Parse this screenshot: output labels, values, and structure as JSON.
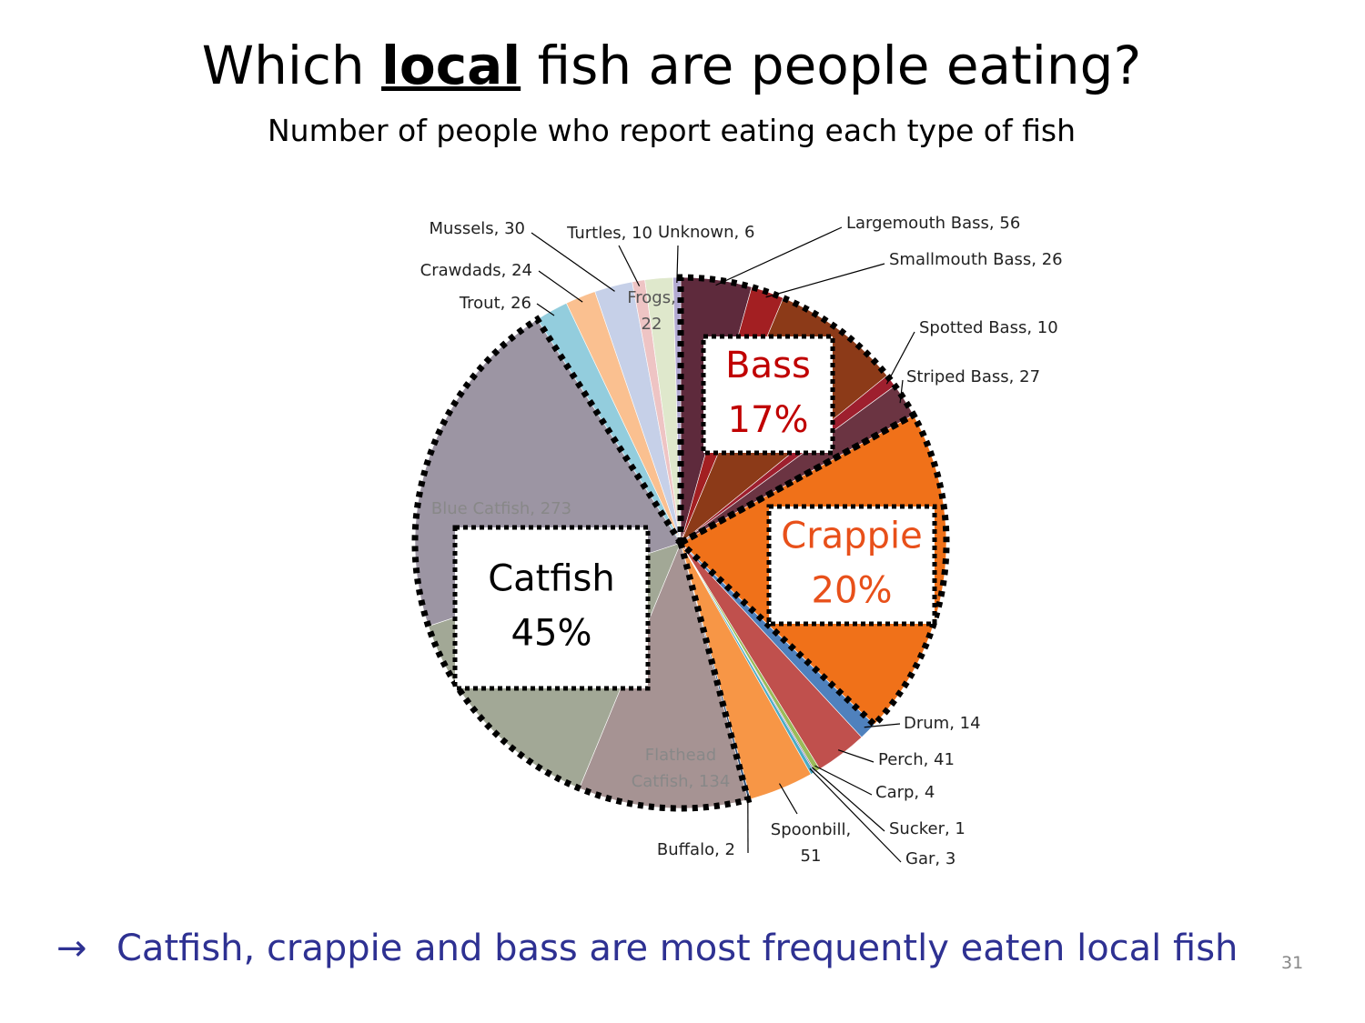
{
  "header": {
    "title": [
      "Which ",
      "local",
      " fish are people eating?"
    ],
    "subtitle": "Number of people who report eating each type of fish"
  },
  "chart_data": {
    "type": "pie",
    "values": [
      56,
      26,
      102,
      10,
      27,
      260,
      14,
      41,
      4,
      1,
      3,
      51,
      2,
      134,
      178,
      273,
      26,
      24,
      30,
      10,
      22,
      6
    ],
    "value_labels": [
      "Largemouth Bass, 56",
      "Smallmouth Bass, 26",
      null,
      "Spotted Bass, 10",
      "Striped Bass, 27",
      null,
      "Drum, 14",
      "Perch, 41",
      "Carp, 4",
      "Sucker, 1",
      "Gar, 3",
      [
        "Spoonbill,",
        "51"
      ],
      "Buffalo, 2",
      [
        "Flathead",
        "Catfish, 134"
      ],
      null,
      "Blue Catfish, 273",
      "Trout, 26",
      "Crawdads, 24",
      "Mussels, 30",
      "Turtles, 10",
      [
        "Frogs,",
        "22"
      ],
      "Unknown, 6"
    ],
    "colors": [
      "#5e2a3c",
      "#a31f22",
      "#8c3a18",
      "#9e1f2e",
      "#6b3442",
      "#f07119",
      "#4f81bd",
      "#c0504d",
      "#9bbb59",
      "#8064a2",
      "#4bacc6",
      "#f79646",
      "#2c4d75",
      "#a69393",
      "#a2a896",
      "#9c95a3",
      "#93cddd",
      "#fac090",
      "#c6d0e8",
      "#eec4c4",
      "#dfe8cc",
      "#b3abd3"
    ],
    "annotations": [
      {
        "lines": [
          "Bass",
          "17%"
        ],
        "color": "#c00000"
      },
      {
        "lines": [
          "Crappie",
          "20%"
        ],
        "color": "#e8501a"
      },
      {
        "lines": [
          "Catfish",
          "45%"
        ],
        "color": "#000000"
      }
    ]
  },
  "footer": {
    "arrow": "→",
    "text": "Catfish, crappie and bass are most frequently eaten local fish",
    "page": "31"
  }
}
